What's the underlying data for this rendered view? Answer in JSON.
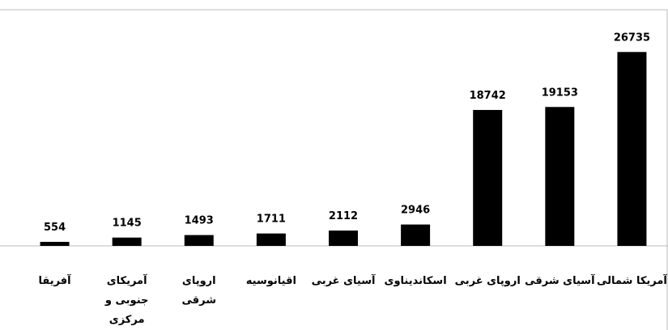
{
  "chart_data": {
    "type": "bar",
    "categories": [
      "آفریقا",
      "آمریکای جنوبی و مرکزی",
      "اروپای شرقی",
      "اقیانوسیه",
      "آسیای غربی",
      "اسکاندیناوی",
      "اروپای غربی",
      "آسیای شرقی",
      "آمریکا شمالی"
    ],
    "values": [
      554,
      1145,
      1493,
      1711,
      2112,
      2946,
      18742,
      19153,
      26735
    ],
    "color": "#000000",
    "ylim": [
      0,
      30000
    ]
  }
}
